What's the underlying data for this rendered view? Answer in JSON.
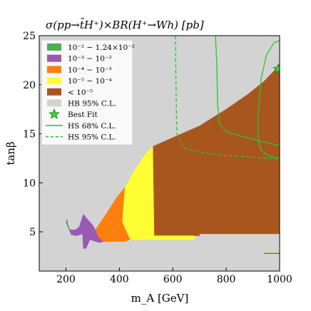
{
  "chart_data": {
    "type": "heatmap",
    "title": "σ(pp→t̄H⁺)×BR(H⁺→Wh) [pb]",
    "xlabel": "m_A [GeV]",
    "ylabel": "tanβ",
    "xlim": [
      100,
      1000
    ],
    "ylim": [
      1,
      25
    ],
    "xticks": [
      200,
      400,
      600,
      800,
      1000
    ],
    "yticks": [
      5,
      10,
      15,
      20,
      25
    ],
    "legend_position": "top-left",
    "background_region": {
      "label": "HB 95% C.L.",
      "color": "#d3d3d3"
    },
    "legend": [
      {
        "label": "10⁻² − 1.24×10⁻²",
        "kind": "patch",
        "color": "#4caf50"
      },
      {
        "label": "10⁻³ − 10⁻²",
        "kind": "patch",
        "color": "#9b59b6"
      },
      {
        "label": "10⁻⁴ − 10⁻³",
        "kind": "patch",
        "color": "#ff7f0e"
      },
      {
        "label": "10⁻⁵ − 10⁻⁴",
        "kind": "patch",
        "color": "#ffff33"
      },
      {
        "label": "< 10⁻⁵",
        "kind": "patch",
        "color": "#a9561e"
      },
      {
        "label": "HB 95% C.L.",
        "kind": "patch",
        "color": "#d3d3d3"
      },
      {
        "label": "Best Fit",
        "kind": "star",
        "color": "#33dd33"
      },
      {
        "label": "HS 68% C.L.",
        "kind": "line",
        "color": "#22cc22"
      },
      {
        "label": "HS 95% C.L.",
        "kind": "dashed",
        "color": "#22cc22"
      }
    ],
    "regions": [
      {
        "name": "< 10⁻⁵",
        "color": "#a9561e",
        "polygon": [
          [
            525,
            13.7
          ],
          [
            600,
            14.6
          ],
          [
            700,
            15.8
          ],
          [
            800,
            17.5
          ],
          [
            880,
            19.0
          ],
          [
            940,
            20.3
          ],
          [
            1000,
            22.0
          ],
          [
            1000,
            4.8
          ],
          [
            700,
            4.8
          ],
          [
            700,
            4.6
          ],
          [
            530,
            4.6
          ]
        ]
      },
      {
        "name": "10⁻⁵ − 10⁻⁴",
        "color": "#ffff33",
        "polygon": [
          [
            420,
            9.5
          ],
          [
            460,
            11.4
          ],
          [
            500,
            13.0
          ],
          [
            525,
            13.7
          ],
          [
            530,
            4.6
          ],
          [
            680,
            4.6
          ],
          [
            680,
            4.2
          ],
          [
            440,
            4.2
          ],
          [
            410,
            6.0
          ]
        ]
      },
      {
        "name": "10⁻⁴ − 10⁻³",
        "color": "#ff7f0e",
        "polygon": [
          [
            310,
            5.2
          ],
          [
            350,
            6.8
          ],
          [
            390,
            8.5
          ],
          [
            420,
            9.5
          ],
          [
            410,
            6.0
          ],
          [
            440,
            4.2
          ],
          [
            420,
            4.0
          ],
          [
            340,
            4.0
          ],
          [
            320,
            4.5
          ]
        ]
      },
      {
        "name": "10⁻³ − 10⁻²",
        "color": "#9b59b6",
        "polygon": [
          [
            250,
            5.5
          ],
          [
            265,
            6.8
          ],
          [
            280,
            6.3
          ],
          [
            300,
            5.7
          ],
          [
            310,
            5.2
          ],
          [
            320,
            4.5
          ],
          [
            340,
            4.0
          ],
          [
            325,
            3.9
          ],
          [
            290,
            4.2
          ],
          [
            275,
            3.3
          ],
          [
            265,
            3.3
          ],
          [
            262,
            4.8
          ],
          [
            240,
            4.6
          ],
          [
            220,
            4.7
          ],
          [
            200,
            6.0
          ],
          [
            215,
            5.2
          ],
          [
            235,
            5.2
          ]
        ]
      },
      {
        "name": "10⁻² − 1.24×10⁻²",
        "color": "#4caf50",
        "polygon": [
          [
            200,
            6.0
          ],
          [
            204,
            6.3
          ],
          [
            207,
            5.8
          ],
          [
            215,
            5.2
          ]
        ]
      }
    ],
    "contours": [
      {
        "name": "HS 68% C.L.",
        "style": "solid",
        "points": [
          [
            760,
            25
          ],
          [
            765,
            22
          ],
          [
            768,
            18
          ],
          [
            775,
            16
          ],
          [
            800,
            15.2
          ],
          [
            850,
            14.8
          ],
          [
            920,
            14.3
          ],
          [
            1000,
            13.8
          ]
        ]
      },
      {
        "name": "HS 95% C.L.",
        "style": "dashed",
        "points": [
          [
            610,
            25
          ],
          [
            612,
            20
          ],
          [
            615,
            15
          ],
          [
            640,
            13.6
          ],
          [
            700,
            13.1
          ],
          [
            800,
            12.8
          ],
          [
            900,
            12.6
          ],
          [
            1000,
            12.4
          ]
        ]
      },
      {
        "name": "HS 95% C.L. outer",
        "style": "solid",
        "points": [
          [
            1000,
            12.5
          ],
          [
            960,
            12.7
          ],
          [
            930,
            13.3
          ],
          [
            920,
            14.5
          ],
          [
            920,
            17.0
          ],
          [
            930,
            20.5
          ],
          [
            950,
            23.0
          ],
          [
            980,
            24.3
          ],
          [
            1000,
            24.5
          ]
        ]
      },
      {
        "name": "HS 68% C.L. small",
        "style": "solid",
        "points": [
          [
            940,
            2.8
          ],
          [
            1000,
            2.8
          ]
        ]
      }
    ],
    "best_fit": {
      "x": 995,
      "y": 21.6
    }
  }
}
